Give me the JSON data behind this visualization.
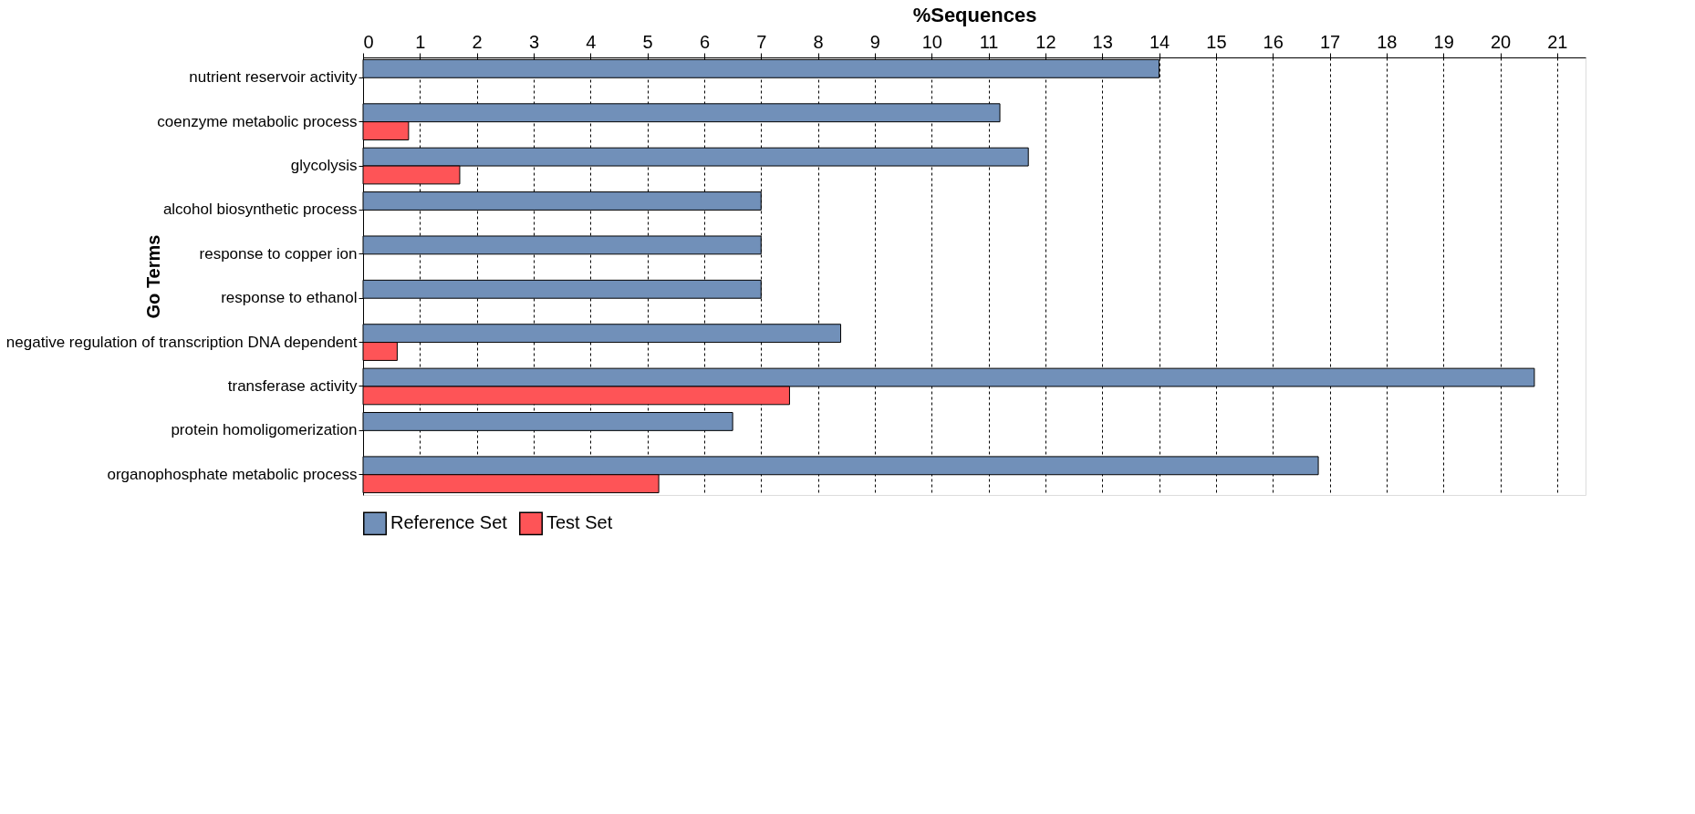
{
  "chart_data": {
    "type": "bar",
    "orientation": "horizontal",
    "xlabel": "%Sequences",
    "ylabel": "Go Terms",
    "categories": [
      "nutrient reservoir activity",
      "coenzyme metabolic process",
      "glycolysis",
      "alcohol biosynthetic process",
      "response to copper ion",
      "response to ethanol",
      "negative regulation of transcription DNA dependent",
      "transferase activity",
      "protein homoligomerization",
      "organophosphate metabolic process"
    ],
    "series": [
      {
        "name": "Reference Set",
        "color": "#7190b9",
        "values": [
          14.0,
          11.2,
          11.7,
          7.0,
          7.0,
          7.0,
          8.4,
          20.6,
          6.5,
          16.8
        ]
      },
      {
        "name": "Test Set",
        "color": "#fe5457",
        "values": [
          null,
          0.8,
          1.7,
          null,
          null,
          null,
          0.6,
          7.5,
          null,
          5.2
        ]
      }
    ],
    "xlim": [
      0,
      21.5
    ],
    "xticks": [
      0,
      1,
      2,
      3,
      4,
      5,
      6,
      7,
      8,
      9,
      10,
      11,
      12,
      13,
      14,
      15,
      16,
      17,
      18,
      19,
      20,
      21
    ],
    "grid": "x",
    "legend": "bottom"
  }
}
